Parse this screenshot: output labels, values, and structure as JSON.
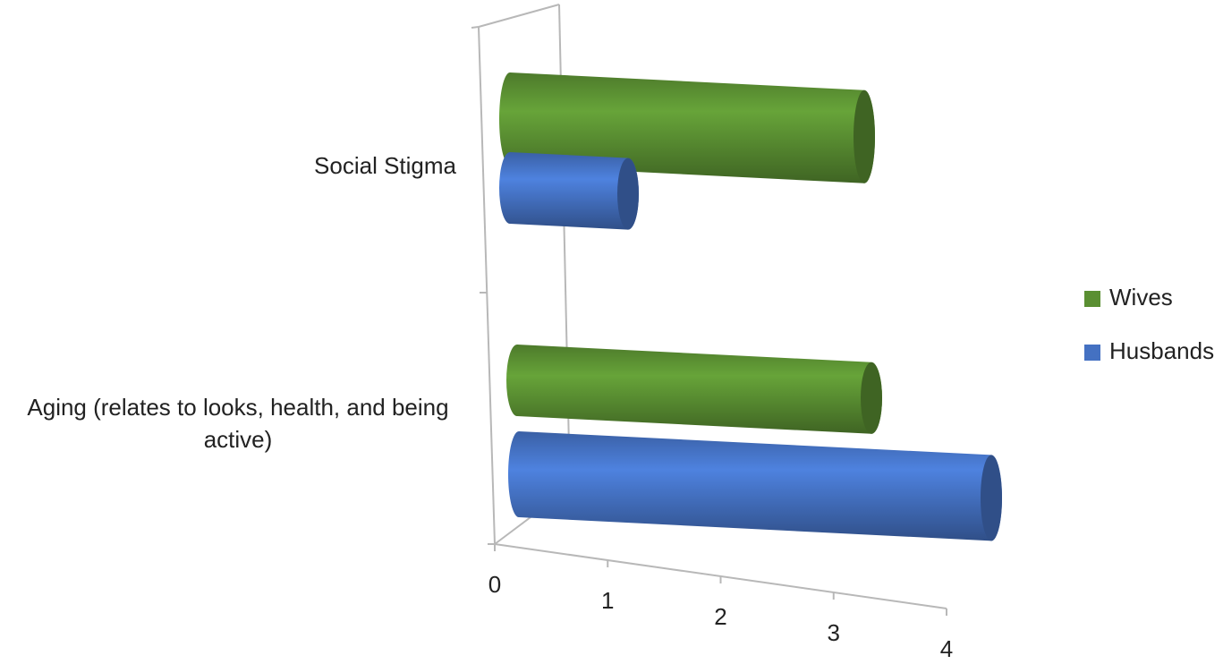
{
  "chart_data": {
    "type": "bar3d-horizontal",
    "categories": [
      "Social Stigma",
      "Aging (relates to looks, health, and being active)"
    ],
    "series": [
      {
        "name": "Wives",
        "color": "#5a8f32",
        "values": [
          3,
          3
        ]
      },
      {
        "name": "Husbands",
        "color": "#4471c2",
        "values": [
          1,
          4
        ]
      }
    ],
    "xlim": [
      0,
      4
    ],
    "xticks": [
      0,
      1,
      2,
      3,
      4
    ],
    "legend": "right"
  }
}
